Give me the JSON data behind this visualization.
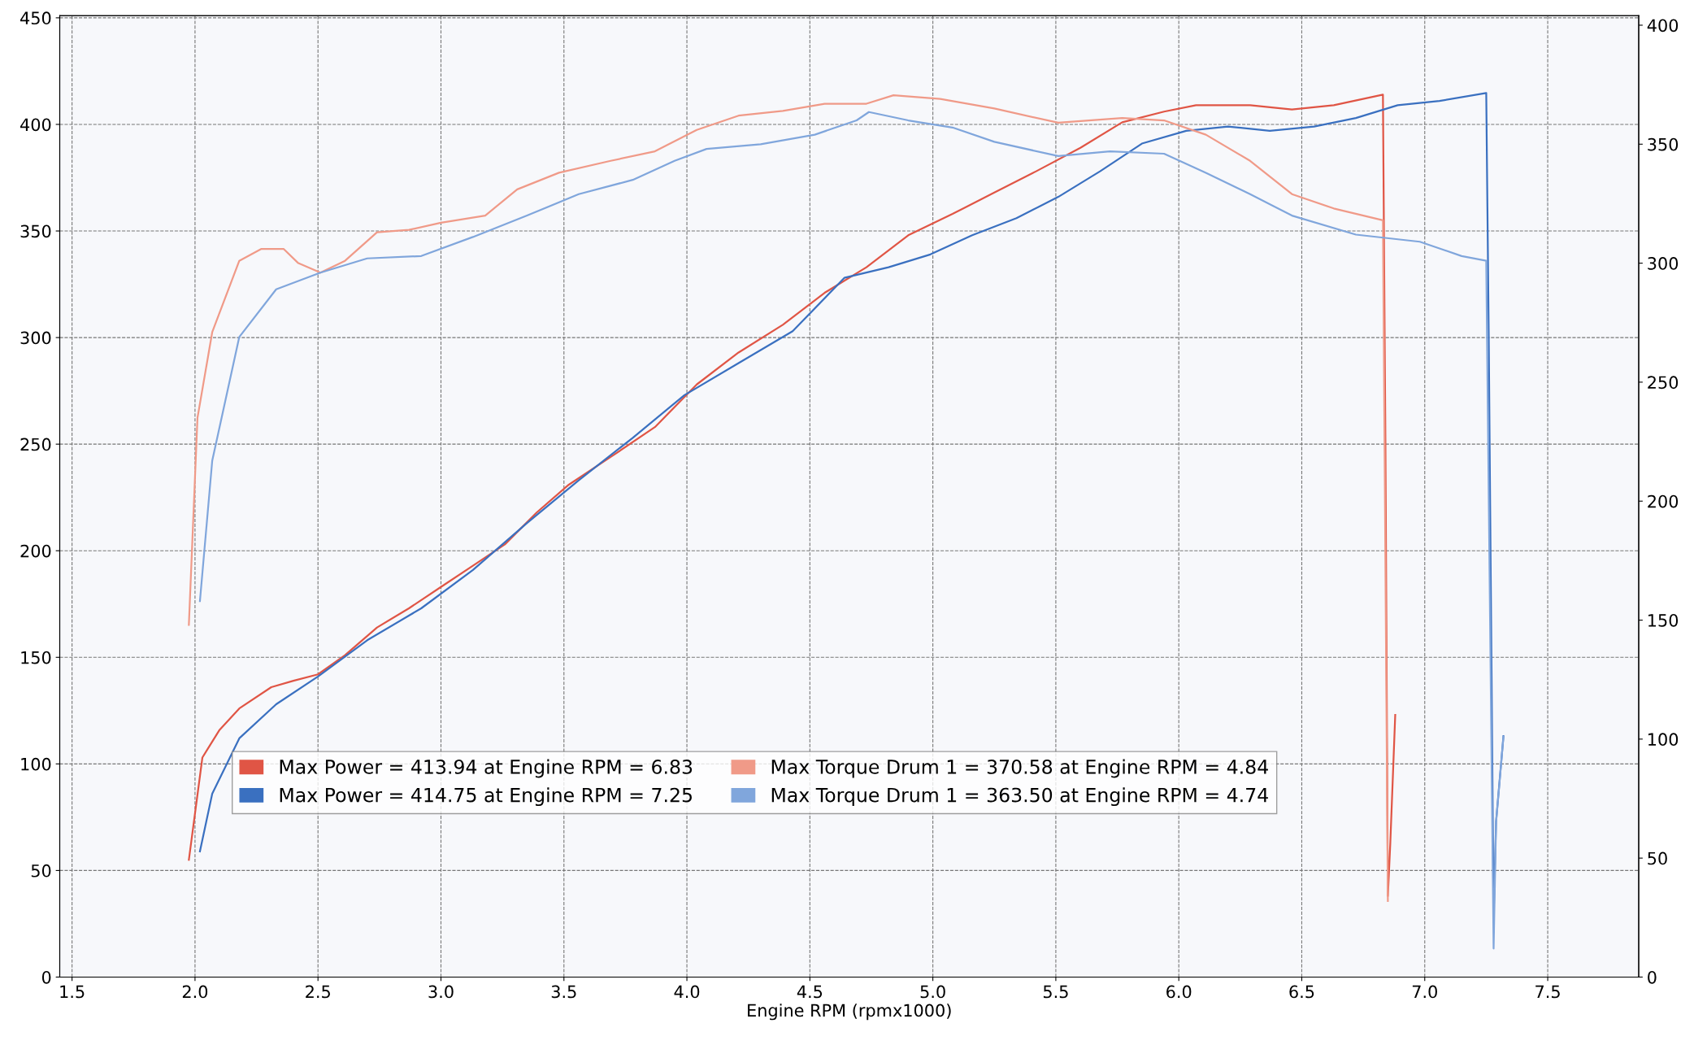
{
  "chart_data": {
    "type": "line",
    "xlabel": "Engine RPM (rpmx1000)",
    "xlim": [
      1.45,
      7.87
    ],
    "xticks": [
      {
        "value": 1.5,
        "label": "1.5"
      },
      {
        "value": 2,
        "label": "2.0"
      },
      {
        "value": 2.5,
        "label": "2.5"
      },
      {
        "value": 3,
        "label": "3.0"
      },
      {
        "value": 3.5,
        "label": "3.5"
      },
      {
        "value": 4,
        "label": "4.0"
      },
      {
        "value": 4.5,
        "label": "4.5"
      },
      {
        "value": 5,
        "label": "5.0"
      },
      {
        "value": 5.5,
        "label": "5.5"
      },
      {
        "value": 6,
        "label": "6.0"
      },
      {
        "value": 6.5,
        "label": "6.5"
      },
      {
        "value": 7,
        "label": "7.0"
      },
      {
        "value": 7.5,
        "label": "7.5"
      }
    ],
    "ylim": [
      0,
      451
    ],
    "yticks": [
      0,
      50,
      100,
      150,
      200,
      250,
      300,
      350,
      400,
      450
    ],
    "y2lim": [
      0,
      404
    ],
    "y2ticks": [
      0,
      50,
      100,
      150,
      200,
      250,
      300,
      350,
      400
    ],
    "grid": true,
    "legend": "bottom",
    "line_style": "solid",
    "marker": "none",
    "series": [
      {
        "name": "Max Power = 413.94 at Engine RPM = 6.83",
        "color": "#e05545",
        "x": [
          1.975,
          2.03,
          2.1,
          2.18,
          2.31,
          2.4,
          2.5,
          2.61,
          2.74,
          2.87,
          3.0,
          3.13,
          3.26,
          3.39,
          3.52,
          3.69,
          3.87,
          4.04,
          4.21,
          4.39,
          4.56,
          4.73,
          4.9,
          5.08,
          5.25,
          5.42,
          5.6,
          5.77,
          5.94,
          6.07,
          6.29,
          6.46,
          6.63,
          6.83,
          6.84,
          6.85,
          6.86,
          6.88
        ],
        "values": [
          55,
          103,
          116,
          126,
          136,
          139,
          142,
          151,
          164,
          173,
          183,
          193,
          203,
          218,
          231,
          244,
          258,
          278,
          293,
          306,
          321,
          333,
          348,
          358,
          368,
          378,
          389,
          401,
          406,
          409,
          409,
          407,
          409,
          413.94,
          253,
          38,
          63,
          123
        ]
      },
      {
        "name": "Max Power = 414.75 at Engine RPM = 7.25",
        "color": "#3a70c0",
        "x": [
          2.02,
          2.07,
          2.18,
          2.33,
          2.5,
          2.7,
          2.92,
          3.13,
          3.35,
          3.56,
          3.78,
          3.99,
          4.21,
          4.43,
          4.64,
          4.82,
          4.99,
          5.16,
          5.34,
          5.51,
          5.68,
          5.85,
          6.03,
          6.2,
          6.37,
          6.55,
          6.72,
          6.89,
          7.06,
          7.25,
          7.26,
          7.28,
          7.29,
          7.32
        ],
        "values": [
          59,
          86,
          112,
          128,
          141,
          158,
          173,
          191,
          213,
          233,
          253,
          273,
          288,
          303,
          328,
          333,
          339,
          348,
          356,
          366,
          378,
          391,
          397,
          399,
          397,
          399,
          403,
          409,
          411,
          414.75,
          303,
          28,
          73,
          113
        ]
      },
      {
        "name": "Max Torque Drum 1 = 370.58 at Engine RPM = 4.84",
        "color": "#f09a88",
        "axis": "y2",
        "x": [
          1.975,
          2.01,
          2.07,
          2.18,
          2.27,
          2.36,
          2.42,
          2.51,
          2.61,
          2.74,
          2.87,
          3.0,
          3.18,
          3.31,
          3.48,
          3.69,
          3.87,
          4.04,
          4.21,
          4.39,
          4.56,
          4.73,
          4.84,
          5.03,
          5.25,
          5.51,
          5.77,
          5.94,
          6.11,
          6.29,
          6.46,
          6.63,
          6.83,
          6.85
        ],
        "values": [
          148,
          235,
          271,
          301,
          306,
          306,
          300,
          296,
          301,
          313,
          314,
          317,
          320,
          331,
          338,
          343,
          347,
          356,
          362,
          364,
          367,
          367,
          370.58,
          369,
          365,
          359,
          361,
          360,
          354,
          343,
          329,
          323,
          318,
          32
        ]
      },
      {
        "name": "Max Torque Drum 1 = 363.50 at Engine RPM = 4.74",
        "color": "#80a6dc",
        "axis": "y2",
        "x": [
          2.02,
          2.07,
          2.18,
          2.33,
          2.51,
          2.7,
          2.92,
          3.13,
          3.35,
          3.56,
          3.78,
          3.95,
          4.08,
          4.3,
          4.52,
          4.69,
          4.74,
          4.9,
          5.08,
          5.25,
          5.51,
          5.72,
          5.94,
          6.11,
          6.29,
          6.46,
          6.72,
          6.98,
          7.15,
          7.25,
          7.26,
          7.28,
          7.29,
          7.32
        ],
        "values": [
          158,
          217,
          269,
          289,
          296,
          302,
          303,
          311,
          320,
          329,
          335,
          343,
          348,
          350,
          354,
          360,
          363.5,
          360,
          357,
          351,
          345,
          347,
          346,
          338,
          329,
          320,
          312,
          309,
          303,
          301,
          204,
          12,
          65,
          101
        ]
      }
    ]
  }
}
